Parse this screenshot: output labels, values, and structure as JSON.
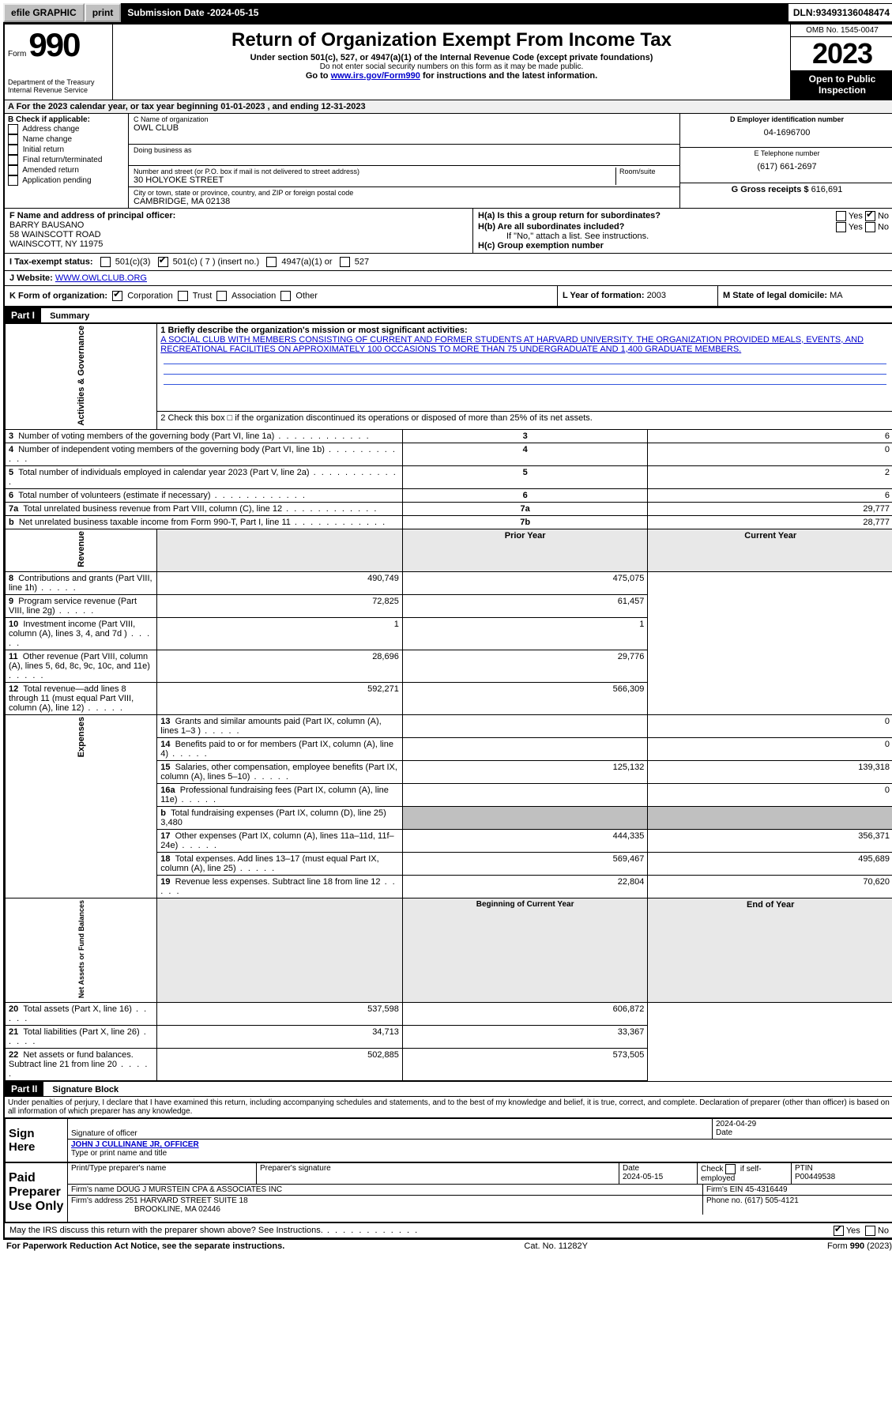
{
  "topbar": {
    "efile": "efile GRAPHIC",
    "print": "print",
    "submission_label": "Submission Date - ",
    "submission_date": "2024-05-15",
    "dln_label": "DLN: ",
    "dln": "93493136048474"
  },
  "header": {
    "form_word": "Form",
    "form_no": "990",
    "title": "Return of Organization Exempt From Income Tax",
    "sub1": "Under section 501(c), 527, or 4947(a)(1) of the Internal Revenue Code (except private foundations)",
    "sub2": "Do not enter social security numbers on this form as it may be made public.",
    "sub3_a": "Go to ",
    "sub3_link": "www.irs.gov/Form990",
    "sub3_b": " for instructions and the latest information.",
    "dept": "Department of the Treasury\nInternal Revenue Service",
    "omb": "OMB No. 1545-0047",
    "year": "2023",
    "open": "Open to Public\nInspection"
  },
  "taxyear": {
    "A": "A For the 2023 calendar year, or tax year beginning ",
    "begin": "01-01-2023",
    "mid": " , and ending ",
    "end": "12-31-2023"
  },
  "B": {
    "label": "B Check if applicable:",
    "opts": [
      "Address change",
      "Name change",
      "Initial return",
      "Final return/terminated",
      "Amended return",
      "Application pending"
    ]
  },
  "C": {
    "name_label": "C Name of organization",
    "name": "OWL CLUB",
    "dba_label": "Doing business as",
    "addr_label": "Number and street (or P.O. box if mail is not delivered to street address)",
    "room_label": "Room/suite",
    "addr": "30 HOLYOKE STREET",
    "city_label": "City or town, state or province, country, and ZIP or foreign postal code",
    "city": "CAMBRIDGE, MA  02138"
  },
  "D": {
    "label": "D Employer identification number",
    "val": "04-1696700"
  },
  "E": {
    "label": "E Telephone number",
    "val": "(617) 661-2697"
  },
  "G": {
    "label": "G Gross receipts $ ",
    "val": "616,691"
  },
  "F": {
    "label": "F  Name and address of principal officer:",
    "name": "BARRY BAUSANO",
    "addr1": "58 WAINSCOTT ROAD",
    "addr2": "WAINSCOTT, NY  11975"
  },
  "H": {
    "a": "H(a)  Is this a group return for subordinates?",
    "a_yes": "Yes",
    "a_no": "No",
    "b": "H(b)  Are all subordinates included?",
    "b_yes": "Yes",
    "b_no": "No",
    "b_note": "If \"No,\" attach a list. See instructions.",
    "c": "H(c)  Group exemption number  "
  },
  "I": {
    "label": "I    Tax-exempt status:",
    "o1": "501(c)(3)",
    "o2a": "501(c) (",
    "o2b": "7",
    "o2c": ") (insert no.)",
    "o3": "4947(a)(1) or",
    "o4": "527"
  },
  "J": {
    "label": "J    Website: ",
    "val": "WWW.OWLCLUB.ORG"
  },
  "K": {
    "label": "K Form of organization:",
    "opts": [
      "Corporation",
      "Trust",
      "Association",
      "Other"
    ]
  },
  "L": {
    "label": "L Year of formation: ",
    "val": "2003"
  },
  "M": {
    "label": "M State of legal domicile: ",
    "val": "MA"
  },
  "partI": {
    "hdr": "Part I",
    "title": "Summary"
  },
  "sideLabels": {
    "gov": "Activities & Governance",
    "rev": "Revenue",
    "exp": "Expenses",
    "net": "Net Assets or\nFund Balances"
  },
  "summary": {
    "q1_label": "1   Briefly describe the organization's mission or most significant activities:",
    "q1_text": "A SOCIAL CLUB WITH MEMBERS CONSISTING OF CURRENT AND FORMER STUDENTS AT HARVARD UNIVERSITY. THE ORGANIZATION PROVIDED MEALS, EVENTS, AND RECREATIONAL FACILITIES ON APPROXIMATELY 100 OCCASIONS TO MORE THAN 75 UNDERGRADUATE AND 1,400 GRADUATE MEMBERS.",
    "q2": "2   Check this box  □  if the organization discontinued its operations or disposed of more than 25% of its net assets.",
    "rows_gov": [
      {
        "n": "3",
        "txt": "Number of voting members of the governing body (Part VI, line 1a)",
        "box": "3",
        "val": "6"
      },
      {
        "n": "4",
        "txt": "Number of independent voting members of the governing body (Part VI, line 1b)",
        "box": "4",
        "val": "0"
      },
      {
        "n": "5",
        "txt": "Total number of individuals employed in calendar year 2023 (Part V, line 2a)",
        "box": "5",
        "val": "2"
      },
      {
        "n": "6",
        "txt": "Total number of volunteers (estimate if necessary)",
        "box": "6",
        "val": "6"
      },
      {
        "n": "7a",
        "txt": "Total unrelated business revenue from Part VIII, column (C), line 12",
        "box": "7a",
        "val": "29,777"
      },
      {
        "n": "b",
        "txt": "Net unrelated business taxable income from Form 990-T, Part I, line 11",
        "box": "7b",
        "val": "28,777"
      }
    ],
    "prior_label": "Prior Year",
    "current_label": "Current Year",
    "rows_rev": [
      {
        "n": "8",
        "txt": "Contributions and grants (Part VIII, line 1h)",
        "p": "490,749",
        "c": "475,075"
      },
      {
        "n": "9",
        "txt": "Program service revenue (Part VIII, line 2g)",
        "p": "72,825",
        "c": "61,457"
      },
      {
        "n": "10",
        "txt": "Investment income (Part VIII, column (A), lines 3, 4, and 7d )",
        "p": "1",
        "c": "1"
      },
      {
        "n": "11",
        "txt": "Other revenue (Part VIII, column (A), lines 5, 6d, 8c, 9c, 10c, and 11e)",
        "p": "28,696",
        "c": "29,776"
      },
      {
        "n": "12",
        "txt": "Total revenue—add lines 8 through 11 (must equal Part VIII, column (A), line 12)",
        "p": "592,271",
        "c": "566,309"
      }
    ],
    "rows_exp": [
      {
        "n": "13",
        "txt": "Grants and similar amounts paid (Part IX, column (A), lines 1–3 )",
        "p": "",
        "c": "0"
      },
      {
        "n": "14",
        "txt": "Benefits paid to or for members (Part IX, column (A), line 4)",
        "p": "",
        "c": "0"
      },
      {
        "n": "15",
        "txt": "Salaries, other compensation, employee benefits (Part IX, column (A), lines 5–10)",
        "p": "125,132",
        "c": "139,318"
      },
      {
        "n": "16a",
        "txt": "Professional fundraising fees (Part IX, column (A), line 11e)",
        "p": "",
        "c": "0"
      },
      {
        "n": "b",
        "txt": "Total fundraising expenses (Part IX, column (D), line 25) 3,480",
        "p": "__SHADE__",
        "c": "__SHADE__"
      },
      {
        "n": "17",
        "txt": "Other expenses (Part IX, column (A), lines 11a–11d, 11f–24e)",
        "p": "444,335",
        "c": "356,371"
      },
      {
        "n": "18",
        "txt": "Total expenses. Add lines 13–17 (must equal Part IX, column (A), line 25)",
        "p": "569,467",
        "c": "495,689"
      },
      {
        "n": "19",
        "txt": "Revenue less expenses. Subtract line 18 from line 12",
        "p": "22,804",
        "c": "70,620"
      }
    ],
    "begin_label": "Beginning of Current Year",
    "end_label": "End of Year",
    "rows_net": [
      {
        "n": "20",
        "txt": "Total assets (Part X, line 16)",
        "p": "537,598",
        "c": "606,872"
      },
      {
        "n": "21",
        "txt": "Total liabilities (Part X, line 26)",
        "p": "34,713",
        "c": "33,367"
      },
      {
        "n": "22",
        "txt": "Net assets or fund balances. Subtract line 21 from line 20",
        "p": "502,885",
        "c": "573,505"
      }
    ]
  },
  "partII": {
    "hdr": "Part II",
    "title": "Signature Block"
  },
  "perjury": "Under penalties of perjury, I declare that I have examined this return, including accompanying schedules and statements, and to the best of my knowledge and belief, it is true, correct, and complete. Declaration of preparer (other than officer) is based on all information of which preparer has any knowledge.",
  "sign": {
    "here": "Sign\nHere",
    "sig_label": "Signature of officer",
    "date_label": "Date",
    "date_val": "2024-04-29",
    "name": "JOHN J CULLINANE JR, OFFICER",
    "name_label": "Type or print name and title"
  },
  "paid": {
    "side": "Paid\nPreparer\nUse Only",
    "h1": "Print/Type preparer's name",
    "h2": "Preparer's signature",
    "h3": "Date",
    "h3v": "2024-05-15",
    "h4a": "Check",
    "h4b": "if self-employed",
    "h5": "PTIN",
    "h5v": "P00449538",
    "firm_label": "Firm's name    ",
    "firm": "DOUG J MURSTEIN CPA & ASSOCIATES INC",
    "ein_label": "Firm's EIN  ",
    "ein": "45-4316449",
    "addr_label": "Firm's address ",
    "addr1": "251 HARVARD STREET SUITE 18",
    "addr2": "BROOKLINE, MA  02446",
    "phone_label": "Phone no. ",
    "phone": "(617) 505-4121"
  },
  "discuss": {
    "txt": "May the IRS discuss this return with the preparer shown above? See Instructions.",
    "yes": "Yes",
    "no": "No"
  },
  "footer": {
    "left": "For Paperwork Reduction Act Notice, see the separate instructions.",
    "mid": "Cat. No. 11282Y",
    "right_a": "Form ",
    "right_b": "990",
    "right_c": " (2023)"
  }
}
